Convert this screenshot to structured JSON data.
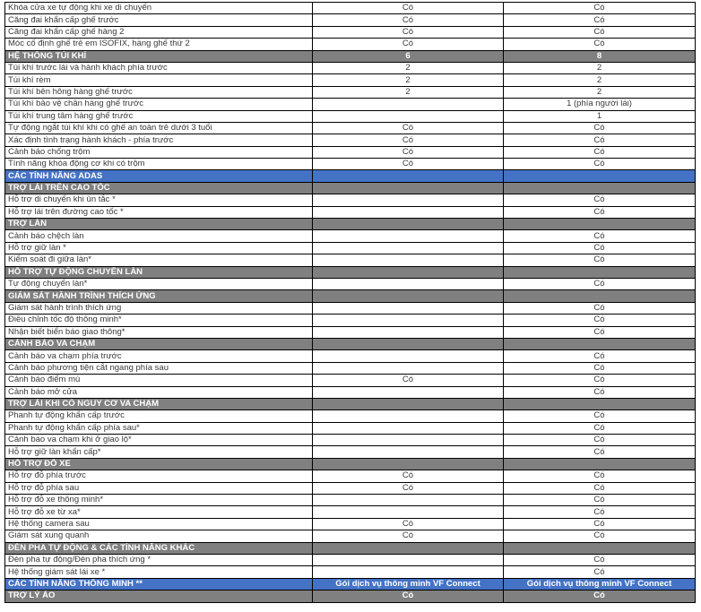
{
  "colors": {
    "section_blue": "#4472C4",
    "section_gray": "#808080",
    "border": "#000000",
    "body_text": "#3a3a3a",
    "header_text": "#ffffff"
  },
  "table": {
    "columns": [
      "feature",
      "variant-1-value",
      "variant-2-value"
    ],
    "rows": [
      {
        "label": "Khóa cửa xe tự động khi xe di chuyển",
        "c1": "Có",
        "c2": "Có",
        "style": "normal"
      },
      {
        "label": "Căng đai khẩn cấp ghế trước",
        "c1": "Có",
        "c2": "Có",
        "style": "normal"
      },
      {
        "label": "Căng đai khẩn cấp ghế hàng 2",
        "c1": "Có",
        "c2": "Có",
        "style": "normal"
      },
      {
        "label": "Móc cố định ghế trẻ em ISOFIX, hàng ghế thứ 2",
        "c1": "Có",
        "c2": "Có",
        "style": "normal"
      },
      {
        "label": "HỆ THỐNG TÚI KHÍ",
        "c1": "6",
        "c2": "8",
        "style": "section-gray"
      },
      {
        "label": "Túi khí trước lái và hành khách phía trước",
        "c1": "2",
        "c2": "2",
        "style": "normal"
      },
      {
        "label": "Túi khí rèm",
        "c1": "2",
        "c2": "2",
        "style": "normal"
      },
      {
        "label": "Túi khí bên hông hàng ghế trước",
        "c1": "2",
        "c2": "2",
        "style": "normal"
      },
      {
        "label": "Túi khí bảo vệ chân hàng ghế trước",
        "c1": "",
        "c2": "1 (phía người lái)",
        "style": "normal"
      },
      {
        "label": "Túi khí trung tâm hàng ghế trước",
        "c1": "",
        "c2": "1",
        "style": "normal"
      },
      {
        "label": "Tự động ngắt túi khí khi có ghế an toàn trẻ dưới 3 tuổi",
        "c1": "Có",
        "c2": "Có",
        "style": "normal"
      },
      {
        "label": "Xác định tình trạng hành khách - phía trước",
        "c1": "Có",
        "c2": "Có",
        "style": "normal"
      },
      {
        "label": "Cảnh báo chống trộm",
        "c1": "Có",
        "c2": "Có",
        "style": "normal"
      },
      {
        "label": "Tính năng khóa động cơ khi có trộm",
        "c1": "Có",
        "c2": "Có",
        "style": "normal"
      },
      {
        "label": "CÁC TÍNH NĂNG ADAS",
        "c1": "",
        "c2": "",
        "style": "section-blue"
      },
      {
        "label": "TRỢ LÁI TRÊN CAO TỐC",
        "c1": "",
        "c2": "",
        "style": "section-gray"
      },
      {
        "label": "Hỗ trợ di chuyển khi ùn tắc *",
        "c1": "",
        "c2": "Có",
        "style": "normal"
      },
      {
        "label": "Hỗ trợ lái trên đường cao tốc *",
        "c1": "",
        "c2": "Có",
        "style": "normal"
      },
      {
        "label": "TRỢ LÀN",
        "c1": "",
        "c2": "",
        "style": "section-gray"
      },
      {
        "label": "Cảnh báo chệch làn",
        "c1": "",
        "c2": "Có",
        "style": "normal"
      },
      {
        "label": "Hỗ trợ giữ làn *",
        "c1": "",
        "c2": "Có",
        "style": "normal"
      },
      {
        "label": "Kiểm soát đi giữa làn*",
        "c1": "",
        "c2": "Có",
        "style": "normal"
      },
      {
        "label": "HỖ TRỢ TỰ ĐỘNG CHUYỂN LÀN",
        "c1": "",
        "c2": "",
        "style": "section-gray"
      },
      {
        "label": "Tự động chuyển làn*",
        "c1": "",
        "c2": "Có",
        "style": "normal"
      },
      {
        "label": "GIÁM SÁT HÀNH TRÌNH THÍCH ỨNG",
        "c1": "",
        "c2": "",
        "style": "section-gray"
      },
      {
        "label": "Giám sát hành trình thích ứng",
        "c1": "",
        "c2": "Có",
        "style": "normal"
      },
      {
        "label": "Điều chỉnh tốc độ thông minh*",
        "c1": "",
        "c2": "Có",
        "style": "normal"
      },
      {
        "label": "Nhận biết biển báo giao thông*",
        "c1": "",
        "c2": "Có",
        "style": "normal"
      },
      {
        "label": "CẢNH BÁO VA CHẠM",
        "c1": "",
        "c2": "",
        "style": "section-gray"
      },
      {
        "label": "Cảnh báo va chạm phía trước",
        "c1": "",
        "c2": "Có",
        "style": "normal"
      },
      {
        "label": "Cảnh báo phương tiện cắt ngang phía sau",
        "c1": "",
        "c2": "Có",
        "style": "normal"
      },
      {
        "label": "Cảnh báo điểm mù",
        "c1": "Có",
        "c2": "Có",
        "style": "normal"
      },
      {
        "label": "Cảnh báo mở cửa",
        "c1": "",
        "c2": "Có",
        "style": "normal"
      },
      {
        "label": "TRỢ LÁI KHI CÓ NGUY CƠ VA CHẠM",
        "c1": "",
        "c2": "",
        "style": "section-gray"
      },
      {
        "label": "Phanh tự động khẩn cấp trước",
        "c1": "",
        "c2": "Có",
        "style": "normal"
      },
      {
        "label": "Phanh tự động khẩn cấp phía sau*",
        "c1": "",
        "c2": "Có",
        "style": "normal"
      },
      {
        "label": "Cảnh báo va chạm khi ở giao lộ*",
        "c1": "",
        "c2": "Có",
        "style": "normal"
      },
      {
        "label": "Hỗ trợ giữ làn khẩn cấp*",
        "c1": "",
        "c2": "Có",
        "style": "normal"
      },
      {
        "label": "HỖ TRỢ ĐỖ XE",
        "c1": "",
        "c2": "",
        "style": "section-gray"
      },
      {
        "label": "Hỗ trợ đỗ phía trước",
        "c1": "Có",
        "c2": "Có",
        "style": "normal"
      },
      {
        "label": "Hỗ trợ đỗ phía sau",
        "c1": "Có",
        "c2": "Có",
        "style": "normal"
      },
      {
        "label": "Hỗ trợ đỗ xe thông minh*",
        "c1": "",
        "c2": "Có",
        "style": "normal"
      },
      {
        "label": "Hỗ trợ đỗ xe từ xa*",
        "c1": "",
        "c2": "Có",
        "style": "normal"
      },
      {
        "label": "Hệ thống camera sau",
        "c1": "Có",
        "c2": "Có",
        "style": "normal"
      },
      {
        "label": "Giám sát xung quanh",
        "c1": "Có",
        "c2": "Có",
        "style": "normal"
      },
      {
        "label": "ĐÈN PHA TỰ ĐỘNG & CÁC TÍNH NĂNG KHÁC",
        "c1": "",
        "c2": "",
        "style": "section-gray"
      },
      {
        "label": "Đèn pha tự động/Đèn pha thích ứng *",
        "c1": "",
        "c2": "Có",
        "style": "normal"
      },
      {
        "label": "Hệ thống giám sát lái xe *",
        "c1": "",
        "c2": "Có",
        "style": "normal"
      },
      {
        "label": "CÁC TÍNH NĂNG THÔNG MINH **",
        "c1": "Gói dịch vụ thông minh VF Connect",
        "c2": "Gói dịch vụ thông minh VF Connect",
        "style": "section-blue"
      },
      {
        "label": "TRỢ LÝ ẢO",
        "c1": "Có",
        "c2": "Có",
        "style": "section-gray"
      }
    ]
  }
}
